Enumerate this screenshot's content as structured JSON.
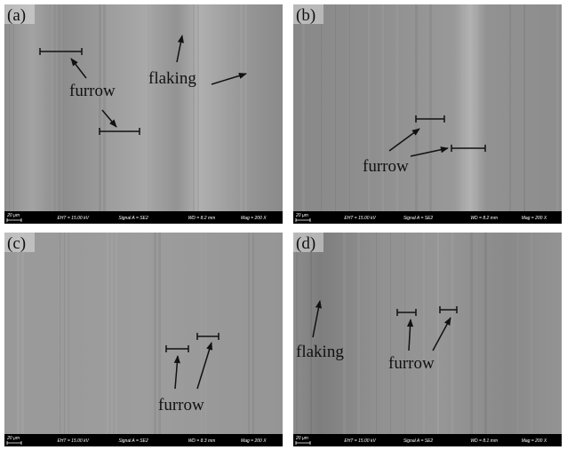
{
  "panels": [
    {
      "label": "(a)",
      "annotations": [
        "furrow",
        "flaking"
      ],
      "info": {
        "scale": "20 μm",
        "eht": "EHT = 15.00 kV",
        "signal": "Signal A = SE2",
        "wd": "WD = 8.2 mm",
        "mag": "Mag = 200 X"
      }
    },
    {
      "label": "(b)",
      "annotations": [
        "furrow"
      ],
      "info": {
        "scale": "20 μm",
        "eht": "EHT = 15.00 kV",
        "signal": "Signal A = SE2",
        "wd": "WD = 8.2 mm",
        "mag": "Mag = 200 X"
      }
    },
    {
      "label": "(c)",
      "annotations": [
        "furrow"
      ],
      "info": {
        "scale": "20 μm",
        "eht": "EHT = 15.00 kV",
        "signal": "Signal A = SE2",
        "wd": "WD = 8.3 mm",
        "mag": "Mag = 200 X"
      }
    },
    {
      "label": "(d)",
      "annotations": [
        "flaking",
        "furrow"
      ],
      "info": {
        "scale": "20 μm",
        "eht": "EHT = 15.00 kV",
        "signal": "Signal A = SE2",
        "wd": "WD = 8.1 mm",
        "mag": "Mag = 200 X"
      }
    }
  ]
}
